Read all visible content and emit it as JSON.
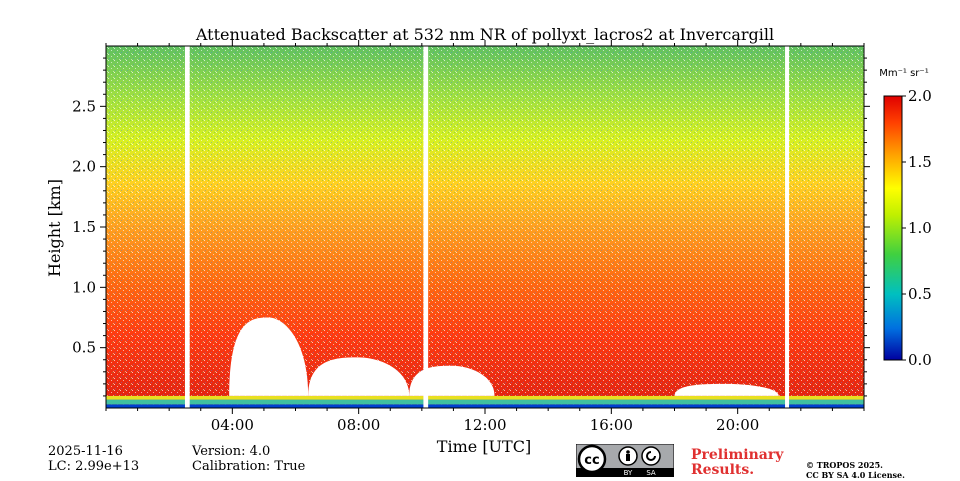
{
  "chart_data": {
    "type": "heatmap",
    "title": "Attenuated Backscatter at 532 nm NR of pollyxt_lacros2 at Invercargill",
    "xlabel": "Time [UTC]",
    "ylabel": "Height [km]",
    "xlim": [
      0,
      24
    ],
    "ylim": [
      0,
      3.0
    ],
    "x_ticks": [
      4,
      8,
      12,
      16,
      20
    ],
    "x_tick_labels": [
      "04:00",
      "08:00",
      "12:00",
      "16:00",
      "20:00"
    ],
    "y_ticks": [
      0.5,
      1.0,
      1.5,
      2.0,
      2.5
    ],
    "y_tick_labels": [
      "0.5",
      "1.0",
      "1.5",
      "2.0",
      "2.5"
    ],
    "colorbar": {
      "label": "Mm⁻¹ sr⁻¹",
      "min": 0.0,
      "max": 2.0,
      "ticks": [
        0.0,
        0.5,
        1.0,
        1.5,
        2.0
      ],
      "tick_labels": [
        "0.0",
        "0.5",
        "1.0",
        "1.5",
        "2.0"
      ],
      "colormap": [
        "#0000a0",
        "#0070e0",
        "#00c0c0",
        "#40d040",
        "#c0f000",
        "#ffff00",
        "#ffa000",
        "#ff4000",
        "#e00000"
      ]
    },
    "data_gaps_utc": [
      [
        2.5,
        2.65
      ],
      [
        10.05,
        10.2
      ],
      [
        21.5,
        21.62
      ]
    ],
    "low_signal_regions": [
      {
        "start": 3.9,
        "end": 6.4,
        "top_km": 0.75
      },
      {
        "start": 6.4,
        "end": 9.6,
        "top_km": 0.42
      },
      {
        "start": 9.6,
        "end": 12.3,
        "top_km": 0.35
      },
      {
        "start": 18.0,
        "end": 21.3,
        "top_km": 0.2
      }
    ],
    "profiles_km_vs_value": [
      {
        "height_km": 0.05,
        "value": 0.2
      },
      {
        "height_km": 0.3,
        "value": 1.9
      },
      {
        "height_km": 1.0,
        "value": 1.8
      },
      {
        "height_km": 1.5,
        "value": 1.6
      },
      {
        "height_km": 2.0,
        "value": 1.3
      },
      {
        "height_km": 2.5,
        "value": 1.1
      },
      {
        "height_km": 2.9,
        "value": 0.9
      }
    ]
  },
  "footer": {
    "date": "2025-11-16",
    "lc": "LC: 2.99e+13",
    "version": "Version: 4.0",
    "calibration": "Calibration: True",
    "preliminary_line1": "Preliminary",
    "preliminary_line2": "Results.",
    "copyright_line1": "© TROPOS 2025.",
    "copyright_line2": "CC BY SA 4.0 License.",
    "cc_logo": {
      "cc": "cc",
      "by": "BY",
      "sa": "SA"
    }
  },
  "colors": {
    "accent_red": "#e03030",
    "logo_bg": "#a7a9ac",
    "logo_dark": "#000000"
  }
}
